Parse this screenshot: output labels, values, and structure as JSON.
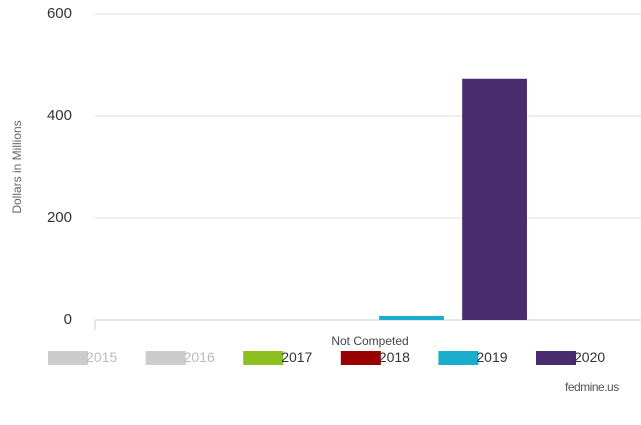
{
  "chart_data": {
    "type": "bar",
    "y_label": "Dollars in Millions",
    "categories": [
      "Not Competed"
    ],
    "series": [
      {
        "name": "2015",
        "color": "#cccccc",
        "visible": false,
        "values": [
          null
        ]
      },
      {
        "name": "2016",
        "color": "#cccccc",
        "visible": false,
        "values": [
          null
        ]
      },
      {
        "name": "2017",
        "color": "#8cbf1f",
        "visible": true,
        "values": [
          0
        ]
      },
      {
        "name": "2018",
        "color": "#990000",
        "visible": true,
        "values": [
          0
        ]
      },
      {
        "name": "2019",
        "color": "#1aaecc",
        "visible": true,
        "values": [
          8
        ]
      },
      {
        "name": "2020",
        "color": "#4a2b6e",
        "visible": true,
        "values": [
          473
        ]
      }
    ],
    "ylim": [
      0,
      600
    ],
    "yticks": [
      0,
      200,
      400,
      600
    ],
    "grid": true,
    "watermark": "fedmine.us"
  }
}
